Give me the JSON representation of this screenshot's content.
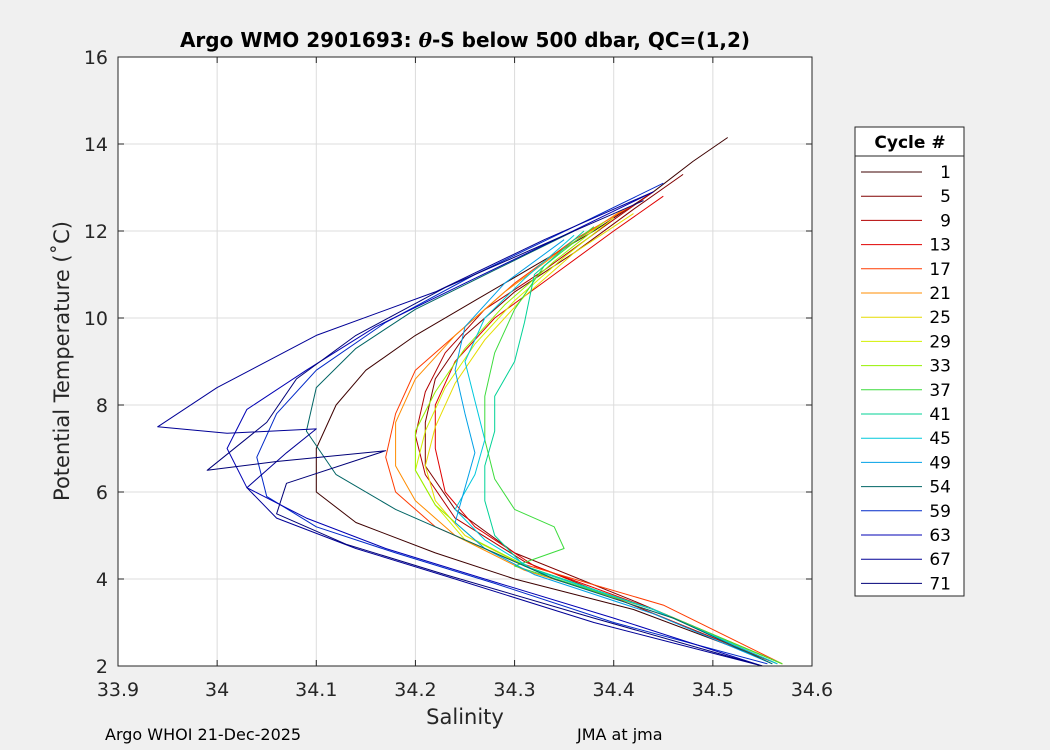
{
  "chart_data": {
    "type": "line",
    "title_prefix": "Argo WMO 2901693: ",
    "title_symbol": "θ",
    "title_suffix": "-S below 500 dbar,  QC=(1,2)",
    "xlabel": "Salinity",
    "ylabel": "Potential Temperature (˚C)",
    "xlim": [
      33.9,
      34.6
    ],
    "ylim": [
      2,
      16
    ],
    "xticks": [
      33.9,
      34.0,
      34.1,
      34.2,
      34.3,
      34.4,
      34.5,
      34.6
    ],
    "xtick_labels": [
      "33.9",
      "34",
      "34.1",
      "34.2",
      "34.3",
      "34.4",
      "34.5",
      "34.6"
    ],
    "yticks": [
      2,
      4,
      6,
      8,
      10,
      12,
      14,
      16
    ],
    "ytick_labels": [
      "2",
      "4",
      "6",
      "8",
      "10",
      "12",
      "14",
      "16"
    ],
    "grid": true,
    "legend_title": "Cycle #",
    "legend_position": "right",
    "series": [
      {
        "name": "1",
        "color": "#3d0000",
        "x": [
          34.515,
          34.48,
          34.44,
          34.38,
          34.32,
          34.26,
          34.2,
          34.15,
          34.12,
          34.1,
          34.1,
          34.14,
          34.22,
          34.3,
          34.42,
          34.56
        ],
        "y": [
          14.15,
          13.6,
          12.9,
          12.0,
          11.2,
          10.4,
          9.6,
          8.8,
          8.0,
          7.0,
          6.0,
          5.3,
          4.6,
          4.0,
          3.3,
          2.1
        ]
      },
      {
        "name": "5",
        "color": "#800000",
        "x": [
          34.47,
          34.42,
          34.36,
          34.3,
          34.25,
          34.22,
          34.21,
          34.21,
          34.24,
          34.3,
          34.42,
          34.57
        ],
        "y": [
          13.3,
          12.5,
          11.5,
          10.6,
          9.6,
          8.6,
          7.6,
          6.6,
          5.6,
          4.6,
          3.5,
          2.05
        ]
      },
      {
        "name": "9",
        "color": "#b30000",
        "x": [
          34.44,
          34.39,
          34.33,
          34.27,
          34.23,
          34.21,
          34.2,
          34.21,
          34.24,
          34.31,
          34.43,
          34.565
        ],
        "y": [
          12.9,
          12.1,
          11.1,
          10.2,
          9.2,
          8.3,
          7.3,
          6.4,
          5.4,
          4.4,
          3.3,
          2.05
        ]
      },
      {
        "name": "13",
        "color": "#e00000",
        "x": [
          34.45,
          34.4,
          34.34,
          34.28,
          34.24,
          34.22,
          34.22,
          34.23,
          34.26,
          34.32,
          34.44,
          34.57
        ],
        "y": [
          12.8,
          12.0,
          11.0,
          10.0,
          9.0,
          8.0,
          7.0,
          6.0,
          5.2,
          4.3,
          3.3,
          2.05
        ]
      },
      {
        "name": "17",
        "color": "#ff3c00",
        "x": [
          34.42,
          34.36,
          34.3,
          34.25,
          34.2,
          34.18,
          34.17,
          34.18,
          34.22,
          34.3,
          34.45,
          34.57
        ],
        "y": [
          12.6,
          11.8,
          10.8,
          9.8,
          8.8,
          7.8,
          6.8,
          6.0,
          5.2,
          4.4,
          3.4,
          2.05
        ]
      },
      {
        "name": "21",
        "color": "#ff8c00",
        "x": [
          34.41,
          34.35,
          34.29,
          34.24,
          34.2,
          34.18,
          34.18,
          34.2,
          34.24,
          34.31,
          34.44,
          34.57
        ],
        "y": [
          12.5,
          11.6,
          10.6,
          9.6,
          8.6,
          7.6,
          6.6,
          5.8,
          5.0,
          4.2,
          3.3,
          2.05
        ]
      },
      {
        "name": "25",
        "color": "#e6dc00",
        "x": [
          34.42,
          34.36,
          34.31,
          34.27,
          34.24,
          34.22,
          34.21,
          34.22,
          34.25,
          34.31,
          34.44,
          34.57
        ],
        "y": [
          12.4,
          11.5,
          10.5,
          9.5,
          8.5,
          7.5,
          6.6,
          5.8,
          5.0,
          4.3,
          3.3,
          2.05
        ]
      },
      {
        "name": "29",
        "color": "#d2f000",
        "x": [
          34.4,
          34.35,
          34.3,
          34.26,
          34.23,
          34.21,
          34.2,
          34.22,
          34.25,
          34.32,
          34.44,
          34.57
        ],
        "y": [
          12.3,
          11.4,
          10.4,
          9.4,
          8.4,
          7.4,
          6.5,
          5.7,
          4.9,
          4.2,
          3.3,
          2.05
        ]
      },
      {
        "name": "33",
        "color": "#96f000",
        "x": [
          34.39,
          34.34,
          34.29,
          34.25,
          34.22,
          34.2,
          34.2,
          34.22,
          34.26,
          34.32,
          34.44,
          34.57
        ],
        "y": [
          12.2,
          11.3,
          10.3,
          9.3,
          8.3,
          7.4,
          6.5,
          5.7,
          4.9,
          4.2,
          3.3,
          2.05
        ]
      },
      {
        "name": "37",
        "color": "#3cdc3c",
        "x": [
          34.38,
          34.33,
          34.3,
          34.28,
          34.27,
          34.27,
          34.28,
          34.3,
          34.34,
          34.35,
          34.3,
          34.44,
          34.57
        ],
        "y": [
          12.1,
          11.2,
          10.2,
          9.2,
          8.2,
          7.2,
          6.3,
          5.6,
          5.2,
          4.7,
          4.3,
          3.3,
          2.05
        ]
      },
      {
        "name": "41",
        "color": "#00d296",
        "x": [
          34.37,
          34.32,
          34.31,
          34.3,
          34.28,
          34.28,
          34.27,
          34.27,
          34.28,
          34.31,
          34.44,
          34.565
        ],
        "y": [
          12.0,
          11.0,
          9.9,
          9.0,
          8.2,
          7.4,
          6.6,
          5.8,
          5.0,
          4.3,
          3.3,
          2.05
        ]
      },
      {
        "name": "45",
        "color": "#00c8dc",
        "x": [
          34.36,
          34.31,
          34.27,
          34.25,
          34.26,
          34.27,
          34.26,
          34.24,
          34.27,
          34.32,
          34.44,
          34.565
        ],
        "y": [
          11.9,
          10.9,
          10.0,
          9.0,
          8.1,
          7.2,
          6.4,
          5.6,
          4.9,
          4.2,
          3.3,
          2.05
        ]
      },
      {
        "name": "49",
        "color": "#00a0e6",
        "x": [
          34.35,
          34.29,
          34.25,
          34.24,
          34.25,
          34.26,
          34.25,
          34.24,
          34.27,
          34.32,
          34.44,
          34.56
        ],
        "y": [
          11.8,
          10.8,
          9.8,
          8.8,
          7.8,
          6.9,
          6.1,
          5.3,
          4.7,
          4.1,
          3.2,
          2.05
        ]
      },
      {
        "name": "54",
        "color": "#006464",
        "x": [
          34.36,
          34.28,
          34.2,
          34.14,
          34.1,
          34.09,
          34.12,
          34.18,
          34.26,
          34.34,
          34.46,
          34.56
        ],
        "y": [
          12.0,
          11.1,
          10.2,
          9.3,
          8.4,
          7.4,
          6.4,
          5.6,
          4.8,
          4.0,
          3.1,
          2.05
        ]
      },
      {
        "name": "59",
        "color": "#0028c8",
        "x": [
          34.45,
          34.36,
          34.26,
          34.17,
          34.1,
          34.06,
          34.04,
          34.05,
          34.1,
          34.18,
          34.28,
          34.4,
          34.555
        ],
        "y": [
          13.1,
          12.1,
          11.0,
          9.9,
          8.8,
          7.8,
          6.8,
          5.9,
          5.2,
          4.6,
          3.9,
          3.0,
          2.05
        ]
      },
      {
        "name": "63",
        "color": "#0000b4",
        "x": [
          34.44,
          34.35,
          34.25,
          34.16,
          34.09,
          34.03,
          34.01,
          34.03,
          34.09,
          34.17,
          34.27,
          34.4,
          34.55
        ],
        "y": [
          12.9,
          11.9,
          10.8,
          9.8,
          8.8,
          7.9,
          7.0,
          6.1,
          5.4,
          4.7,
          4.0,
          3.1,
          2.0
        ]
      },
      {
        "name": "67",
        "color": "#000096",
        "x": [
          34.44,
          34.33,
          34.22,
          34.1,
          34.0,
          33.94,
          34.01,
          34.1,
          34.07,
          34.03,
          34.06,
          34.14,
          34.24,
          34.38,
          34.55
        ],
        "y": [
          12.9,
          11.8,
          10.6,
          9.6,
          8.4,
          7.5,
          7.35,
          7.45,
          6.9,
          6.1,
          5.4,
          4.7,
          4.0,
          3.0,
          2.0
        ]
      },
      {
        "name": "71",
        "color": "#000078",
        "x": [
          34.43,
          34.33,
          34.23,
          34.14,
          34.08,
          34.05,
          33.99,
          34.06,
          34.17,
          34.07,
          34.06,
          34.13,
          34.23,
          34.38,
          34.55
        ],
        "y": [
          12.7,
          11.7,
          10.7,
          9.6,
          8.6,
          7.6,
          6.5,
          6.7,
          6.95,
          6.2,
          5.5,
          4.8,
          4.1,
          3.1,
          2.0
        ]
      }
    ]
  },
  "footer": {
    "left": "Argo WHOI 21-Dec-2025",
    "right": "JMA at jma"
  }
}
